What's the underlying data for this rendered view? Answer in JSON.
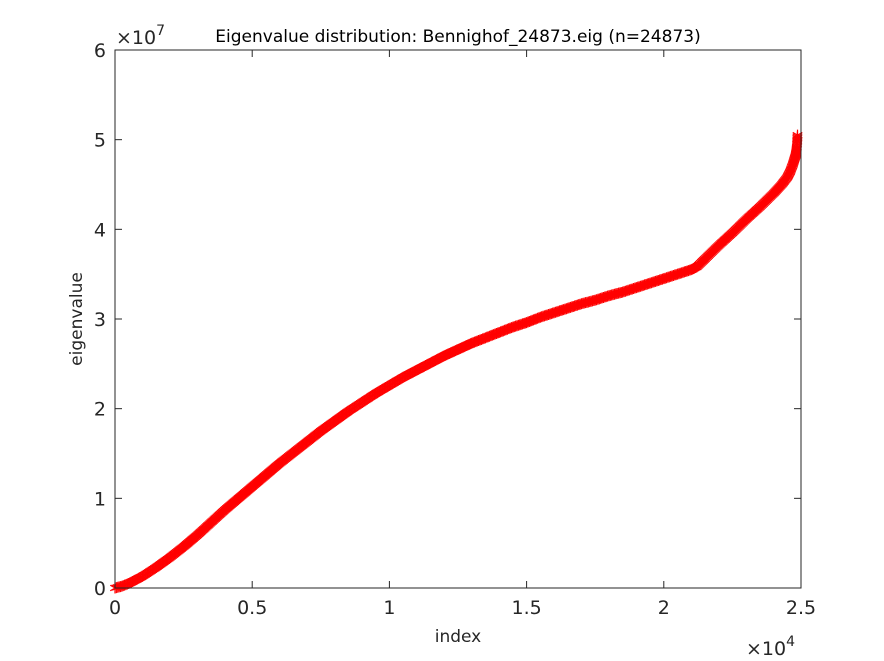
{
  "chart_data": {
    "type": "scatter",
    "title": "Eigenvalue distribution: Bennighof_24873.eig (n=24873)",
    "xlabel": "index",
    "ylabel": "eigenvalue",
    "xlim": [
      0,
      25000
    ],
    "ylim": [
      0,
      60000000
    ],
    "x_ticks": [
      0,
      5000,
      10000,
      15000,
      20000,
      25000
    ],
    "x_tick_labels": [
      "0",
      "0.5",
      "1",
      "1.5",
      "2",
      "2.5"
    ],
    "y_ticks": [
      0,
      10000000,
      20000000,
      30000000,
      40000000,
      50000000,
      60000000
    ],
    "y_tick_labels": [
      "0",
      "1",
      "2",
      "3",
      "4",
      "5",
      "6"
    ],
    "x_exponent": {
      "base": "×10",
      "power": "4"
    },
    "y_exponent": {
      "base": "×10",
      "power": "7"
    },
    "marker": "asterisk",
    "marker_color": "#ff0000",
    "grid": false,
    "box": true,
    "series": [
      {
        "x": [
          0,
          250,
          500,
          1000,
          1500,
          2000,
          2500,
          3000,
          3500,
          4000,
          4500,
          5000,
          5500,
          6000,
          6500,
          7000,
          7500,
          8000,
          8500,
          9000,
          9500,
          10000,
          10500,
          11000,
          11500,
          12000,
          12500,
          13000,
          13500,
          14000,
          14500,
          15000,
          15500,
          16000,
          16500,
          17000,
          17500,
          18000,
          18500,
          19000,
          19500,
          20000,
          20500,
          21000,
          21200,
          21500,
          22000,
          22500,
          23000,
          23500,
          24000,
          24300,
          24500,
          24600,
          24700,
          24750,
          24800,
          24830,
          24850,
          24860,
          24873
        ],
        "y": [
          0,
          200000,
          500000,
          1300000,
          2300000,
          3400000,
          4600000,
          5900000,
          7300000,
          8700000,
          10000000,
          11300000,
          12600000,
          13900000,
          15100000,
          16300000,
          17500000,
          18600000,
          19700000,
          20700000,
          21700000,
          22600000,
          23500000,
          24300000,
          25100000,
          25900000,
          26600000,
          27300000,
          27900000,
          28500000,
          29100000,
          29600000,
          30200000,
          30700000,
          31200000,
          31700000,
          32100000,
          32600000,
          33000000,
          33500000,
          34000000,
          34500000,
          35000000,
          35500000,
          35800000,
          36700000,
          38200000,
          39600000,
          41100000,
          42500000,
          44000000,
          45000000,
          45800000,
          46400000,
          47200000,
          47700000,
          48200000,
          48700000,
          49200000,
          49700000,
          50500000
        ]
      }
    ]
  }
}
